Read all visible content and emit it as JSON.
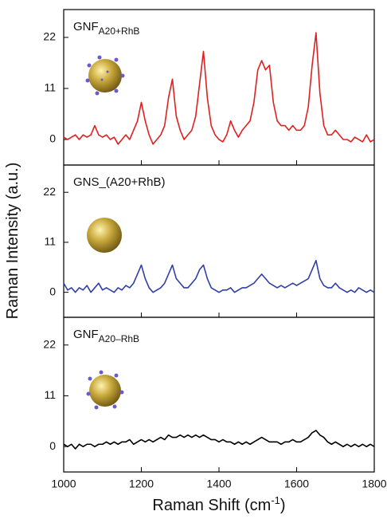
{
  "chart_data": [
    {
      "type": "line",
      "label": {
        "main": "GNF",
        "sub": "A20+RhB"
      },
      "color": "#e02020",
      "xlim": [
        1000,
        1800
      ],
      "ylim": [
        -5.5,
        28
      ],
      "yticks": [
        0,
        11,
        22
      ],
      "x": [
        1000,
        1010,
        1020,
        1030,
        1040,
        1050,
        1060,
        1070,
        1080,
        1090,
        1100,
        1110,
        1120,
        1130,
        1140,
        1150,
        1160,
        1170,
        1180,
        1190,
        1200,
        1210,
        1220,
        1230,
        1240,
        1250,
        1260,
        1270,
        1280,
        1290,
        1300,
        1310,
        1320,
        1330,
        1340,
        1350,
        1360,
        1370,
        1380,
        1390,
        1400,
        1410,
        1420,
        1430,
        1440,
        1450,
        1460,
        1470,
        1480,
        1490,
        1500,
        1510,
        1520,
        1530,
        1540,
        1550,
        1560,
        1570,
        1580,
        1590,
        1600,
        1610,
        1620,
        1630,
        1640,
        1650,
        1660,
        1670,
        1680,
        1690,
        1700,
        1710,
        1720,
        1730,
        1740,
        1750,
        1760,
        1770,
        1780,
        1790,
        1800
      ],
      "values": [
        0.5,
        0,
        0.5,
        1,
        0,
        1,
        0.5,
        1,
        3,
        1,
        0.5,
        1,
        0,
        0.5,
        -1,
        0,
        1,
        0,
        2,
        4,
        8,
        4,
        1,
        -1,
        0,
        1,
        3,
        9,
        13,
        5,
        2,
        0,
        1,
        2,
        5,
        12,
        19,
        9,
        3,
        1,
        0,
        -0.5,
        1,
        4,
        2,
        0.5,
        2,
        3,
        4,
        8,
        15,
        17,
        15,
        16,
        8,
        4,
        3,
        3,
        2,
        3,
        2,
        2,
        3,
        7,
        16,
        23,
        10,
        3,
        1,
        1,
        2,
        1,
        0,
        0,
        -0.5,
        0.5,
        0,
        -0.5,
        1,
        -0.5,
        0
      ]
    },
    {
      "type": "line",
      "label": {
        "main": "GNS_(A20+RhB)"
      },
      "color": "#2f3fa8",
      "ylabel": "Raman Intensity (a.u.)",
      "xlim": [
        1000,
        1800
      ],
      "ylim": [
        -5.5,
        28
      ],
      "yticks": [
        0,
        11,
        22
      ],
      "x": [
        1000,
        1010,
        1020,
        1030,
        1040,
        1050,
        1060,
        1070,
        1080,
        1090,
        1100,
        1110,
        1120,
        1130,
        1140,
        1150,
        1160,
        1170,
        1180,
        1190,
        1200,
        1210,
        1220,
        1230,
        1240,
        1250,
        1260,
        1270,
        1280,
        1290,
        1300,
        1310,
        1320,
        1330,
        1340,
        1350,
        1360,
        1370,
        1380,
        1390,
        1400,
        1410,
        1420,
        1430,
        1440,
        1450,
        1460,
        1470,
        1480,
        1490,
        1500,
        1510,
        1520,
        1530,
        1540,
        1550,
        1560,
        1570,
        1580,
        1590,
        1600,
        1610,
        1620,
        1630,
        1640,
        1650,
        1660,
        1670,
        1680,
        1690,
        1700,
        1710,
        1720,
        1730,
        1740,
        1750,
        1760,
        1770,
        1780,
        1790,
        1800
      ],
      "values": [
        2,
        0.5,
        1,
        0,
        1,
        0.5,
        1.5,
        0,
        1,
        2,
        0.5,
        1,
        0.5,
        0,
        1,
        0.5,
        1.5,
        1,
        2,
        4,
        6,
        3,
        1,
        0,
        0.5,
        1,
        2,
        4,
        6,
        3,
        2,
        1,
        1,
        2,
        3,
        5,
        6,
        3,
        1,
        0.5,
        0,
        0.5,
        0.5,
        1,
        0,
        0.5,
        1,
        1,
        1.5,
        2,
        3,
        4,
        3,
        2,
        1.5,
        1,
        1.5,
        1,
        1.5,
        2,
        1.5,
        2,
        2.5,
        3,
        5,
        7,
        3,
        1.5,
        1,
        1,
        2,
        1,
        0.5,
        0,
        0.5,
        0,
        1,
        0.5,
        0,
        0.5,
        0
      ]
    },
    {
      "type": "line",
      "label": {
        "main": "GNF",
        "sub": "A20–RhB"
      },
      "color": "#000000",
      "xlabel": {
        "text": "Raman Shift (cm",
        "sup": "-1",
        "end": ")"
      },
      "xlim": [
        1000,
        1800
      ],
      "xticks": [
        1000,
        1200,
        1400,
        1600,
        1800
      ],
      "ylim": [
        -5.5,
        28
      ],
      "yticks": [
        0,
        11,
        22
      ],
      "x": [
        1000,
        1010,
        1020,
        1030,
        1040,
        1050,
        1060,
        1070,
        1080,
        1090,
        1100,
        1110,
        1120,
        1130,
        1140,
        1150,
        1160,
        1170,
        1180,
        1190,
        1200,
        1210,
        1220,
        1230,
        1240,
        1250,
        1260,
        1270,
        1280,
        1290,
        1300,
        1310,
        1320,
        1330,
        1340,
        1350,
        1360,
        1370,
        1380,
        1390,
        1400,
        1410,
        1420,
        1430,
        1440,
        1450,
        1460,
        1470,
        1480,
        1490,
        1500,
        1510,
        1520,
        1530,
        1540,
        1550,
        1560,
        1570,
        1580,
        1590,
        1600,
        1610,
        1620,
        1630,
        1640,
        1650,
        1660,
        1670,
        1680,
        1690,
        1700,
        1710,
        1720,
        1730,
        1740,
        1750,
        1760,
        1770,
        1780,
        1790,
        1800
      ],
      "values": [
        0.5,
        0,
        0.5,
        -0.5,
        0.5,
        0,
        0.5,
        0.5,
        0,
        0.5,
        0.5,
        1,
        0.5,
        1,
        0.5,
        1,
        1,
        1.5,
        0.5,
        1,
        1.5,
        1,
        1.5,
        1,
        1.5,
        2,
        1.5,
        2.5,
        2,
        2,
        2.5,
        2,
        2.5,
        2,
        2.5,
        2,
        2.5,
        2,
        1.5,
        1.5,
        1,
        1.5,
        1,
        1,
        0.5,
        1,
        0.5,
        1,
        0.5,
        1,
        1.5,
        2,
        1.5,
        1,
        1,
        1,
        0.5,
        1,
        1,
        1.5,
        1,
        1,
        1.5,
        2,
        3,
        3.5,
        2.5,
        2,
        1,
        0.5,
        1,
        0.5,
        0,
        0.5,
        0,
        0.5,
        0,
        0.5,
        0,
        0.5,
        0
      ]
    }
  ]
}
